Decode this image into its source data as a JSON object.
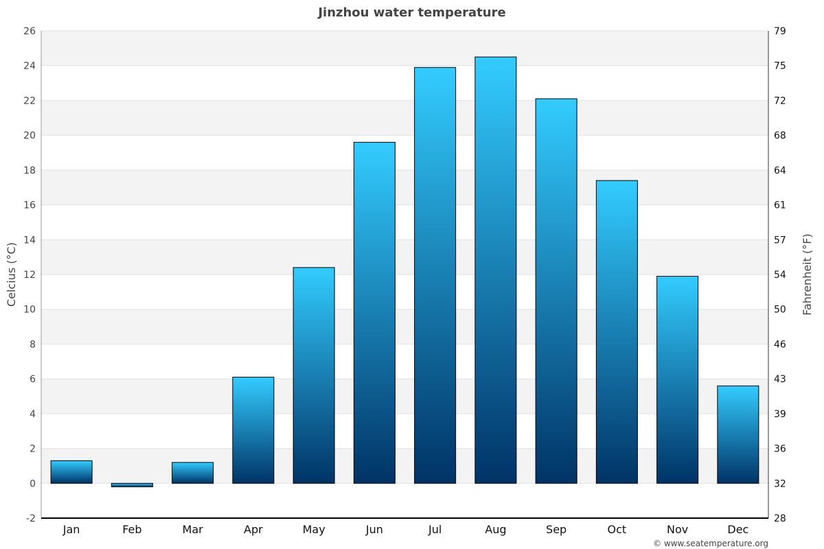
{
  "chart_data": {
    "type": "bar",
    "title": "Jinzhou water temperature",
    "ylabel": "Celcius (°C)",
    "ylabel_right": "Fahrenheit (°F)",
    "categories": [
      "Jan",
      "Feb",
      "Mar",
      "Apr",
      "May",
      "Jun",
      "Jul",
      "Aug",
      "Sep",
      "Oct",
      "Nov",
      "Dec"
    ],
    "values": [
      1.3,
      -0.2,
      1.2,
      6.1,
      12.4,
      19.6,
      23.9,
      24.5,
      22.1,
      17.4,
      11.9,
      5.6
    ],
    "ylim": [
      -2,
      26
    ],
    "yticks": [
      -2,
      0,
      2,
      4,
      6,
      8,
      10,
      12,
      14,
      16,
      18,
      20,
      22,
      24,
      26
    ],
    "yticks_right": [
      "28",
      "32",
      "36",
      "39",
      "43",
      "46",
      "50",
      "54",
      "57",
      "61",
      "64",
      "68",
      "72",
      "75",
      "79"
    ],
    "grid": true,
    "colors": {
      "bar_top": "#33ccff",
      "bar_bottom": "#003366",
      "band": "#f3f3f3"
    }
  },
  "credit": "© www.seatemperature.org"
}
